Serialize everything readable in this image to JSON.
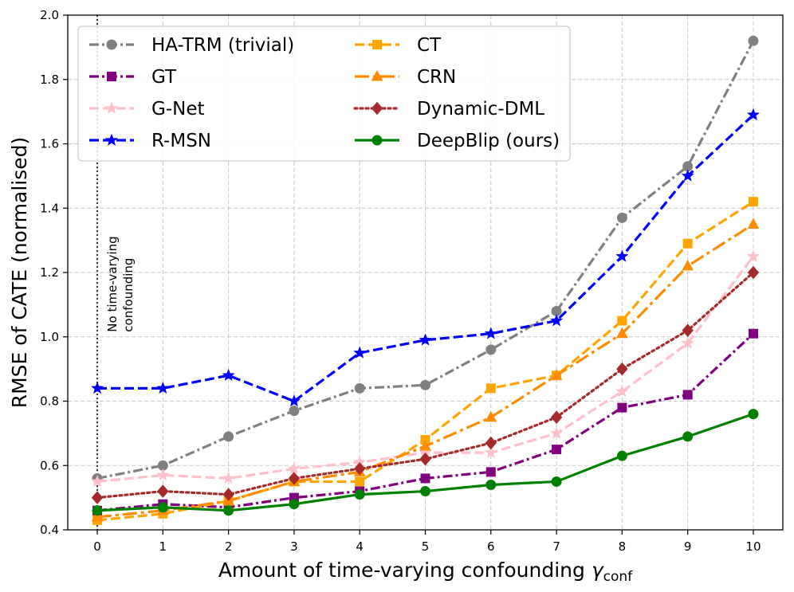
{
  "chart_data": {
    "type": "line",
    "xlabel": "Amount of time-varying confounding",
    "xlabel_symbol": "γ",
    "xlabel_subscript": "conf",
    "ylabel": "RMSE of CATE (normalised)",
    "x": [
      0,
      1,
      2,
      3,
      4,
      5,
      6,
      7,
      8,
      9,
      10
    ],
    "xlim": [
      -0.45,
      10.45
    ],
    "ylim": [
      0.4,
      2.0
    ],
    "yticks": [
      "0.4",
      "0.6",
      "0.8",
      "1.0",
      "1.2",
      "1.4",
      "1.6",
      "1.8",
      "2.0"
    ],
    "xticks": [
      "0",
      "1",
      "2",
      "3",
      "4",
      "5",
      "6",
      "7",
      "8",
      "9",
      "10"
    ],
    "grid": true,
    "legend_position": "top-left",
    "legend_columns": 2,
    "annotation": {
      "line1": "No time-varying",
      "line2": "confounding",
      "x": 0
    },
    "series": [
      {
        "name": "HA-TRM (trivial)",
        "color": "#808080",
        "dash": "dashdot",
        "marker": "circle",
        "values": [
          0.56,
          0.6,
          0.69,
          0.77,
          0.84,
          0.85,
          0.96,
          1.08,
          1.37,
          1.53,
          1.92
        ]
      },
      {
        "name": "GT",
        "color": "#800080",
        "dash": "dashdot",
        "marker": "square",
        "values": [
          0.46,
          0.48,
          0.47,
          0.5,
          0.52,
          0.56,
          0.58,
          0.65,
          0.78,
          0.82,
          1.01
        ]
      },
      {
        "name": "G-Net",
        "color": "#ffc0cb",
        "dash": "dashed",
        "marker": "star",
        "values": [
          0.55,
          0.57,
          0.56,
          0.59,
          0.61,
          0.64,
          0.64,
          0.7,
          0.83,
          0.98,
          1.25
        ]
      },
      {
        "name": "R-MSN",
        "color": "#0000ff",
        "dash": "dashed",
        "marker": "star",
        "values": [
          0.84,
          0.84,
          0.88,
          0.8,
          0.95,
          0.99,
          1.01,
          1.05,
          1.25,
          1.5,
          1.69
        ]
      },
      {
        "name": "CT",
        "color": "#ffa500",
        "dash": "dashed",
        "marker": "square",
        "values": [
          0.43,
          0.45,
          0.49,
          0.55,
          0.55,
          0.68,
          0.84,
          0.88,
          1.05,
          1.29,
          1.42
        ]
      },
      {
        "name": "CRN",
        "color": "#ff8c00",
        "dash": "longdashdot",
        "marker": "triangle",
        "values": [
          0.44,
          0.46,
          0.49,
          0.55,
          0.58,
          0.66,
          0.75,
          0.88,
          1.01,
          1.22,
          1.35
        ]
      },
      {
        "name": "Dynamic-DML",
        "color": "#a52a2a",
        "dash": "dotted",
        "marker": "diamond",
        "values": [
          0.5,
          0.52,
          0.51,
          0.56,
          0.59,
          0.62,
          0.67,
          0.75,
          0.9,
          1.02,
          1.2
        ]
      },
      {
        "name": "DeepBlip (ours)",
        "color": "#008000",
        "dash": "solid",
        "marker": "circle",
        "values": [
          0.46,
          0.47,
          0.46,
          0.48,
          0.51,
          0.52,
          0.54,
          0.55,
          0.63,
          0.69,
          0.76
        ]
      }
    ]
  }
}
